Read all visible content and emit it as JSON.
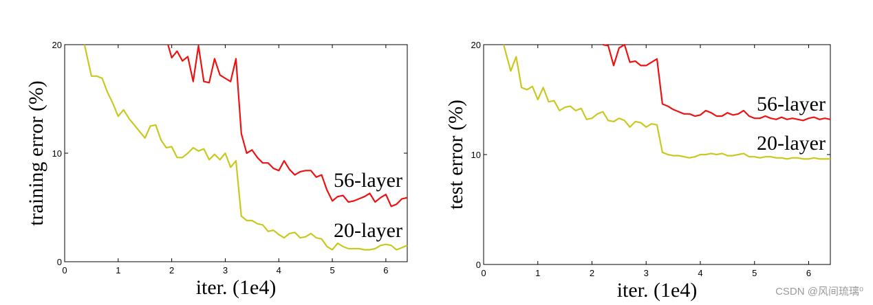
{
  "chart_data": [
    {
      "type": "line",
      "xlabel": "iter. (1e4)",
      "ylabel": "training error (%)",
      "xlim": [
        0,
        6.4
      ],
      "ylim": [
        0,
        20
      ],
      "xticks": [
        0,
        1,
        2,
        3,
        4,
        5,
        6
      ],
      "xtick_labels": [
        "0",
        "1",
        "2",
        "3",
        "4",
        "5",
        "6"
      ],
      "yticks": [
        0,
        10,
        20
      ],
      "ytick_labels": [
        "0",
        "10",
        "20"
      ],
      "grid": false,
      "series": [
        {
          "name": "56-layer",
          "color": "#ee1111",
          "x": [
            1.93,
            2.0,
            2.1,
            2.2,
            2.3,
            2.4,
            2.5,
            2.6,
            2.7,
            2.8,
            2.9,
            3.0,
            3.1,
            3.2,
            3.3,
            3.4,
            3.5,
            3.6,
            3.7,
            3.8,
            3.9,
            4.0,
            4.1,
            4.2,
            4.3,
            4.4,
            4.5,
            4.6,
            4.7,
            4.8,
            4.9,
            5.0,
            5.1,
            5.2,
            5.3,
            5.4,
            5.5,
            5.6,
            5.7,
            5.8,
            5.9,
            6.0,
            6.1,
            6.2,
            6.3,
            6.4
          ],
          "y": [
            20.0,
            18.8,
            19.4,
            18.5,
            18.9,
            16.6,
            19.9,
            16.6,
            16.5,
            18.7,
            17.2,
            16.9,
            16.6,
            18.7,
            11.8,
            10.0,
            10.3,
            9.6,
            9.1,
            9.1,
            8.6,
            8.4,
            9.3,
            8.5,
            8.0,
            8.3,
            8.4,
            8.4,
            7.8,
            8.0,
            6.6,
            5.6,
            6.0,
            6.1,
            5.5,
            5.6,
            5.8,
            6.0,
            6.3,
            5.5,
            5.9,
            6.2,
            5.1,
            5.3,
            5.8,
            5.9
          ]
        },
        {
          "name": "20-layer",
          "color": "#c8c81e",
          "x": [
            0.37,
            0.5,
            0.6,
            0.7,
            0.8,
            0.9,
            1.0,
            1.1,
            1.2,
            1.3,
            1.4,
            1.5,
            1.6,
            1.7,
            1.8,
            1.9,
            2.0,
            2.1,
            2.2,
            2.3,
            2.4,
            2.5,
            2.6,
            2.7,
            2.8,
            2.9,
            3.0,
            3.1,
            3.2,
            3.3,
            3.4,
            3.5,
            3.6,
            3.7,
            3.8,
            3.9,
            4.0,
            4.1,
            4.2,
            4.3,
            4.4,
            4.5,
            4.6,
            4.7,
            4.8,
            4.9,
            5.0,
            5.1,
            5.2,
            5.3,
            5.4,
            5.5,
            5.6,
            5.7,
            5.8,
            5.9,
            6.0,
            6.1,
            6.2,
            6.3,
            6.4
          ],
          "y": [
            20.0,
            17.1,
            17.1,
            16.9,
            15.6,
            14.6,
            13.4,
            14.0,
            13.2,
            12.6,
            12.0,
            11.4,
            12.5,
            12.6,
            11.2,
            10.5,
            10.6,
            9.6,
            9.6,
            10.0,
            10.5,
            10.2,
            10.4,
            9.4,
            9.9,
            9.4,
            10.0,
            8.7,
            9.3,
            4.2,
            3.8,
            3.8,
            3.5,
            3.4,
            2.8,
            2.9,
            2.5,
            2.2,
            2.6,
            2.7,
            2.2,
            2.3,
            2.6,
            2.2,
            2.1,
            1.4,
            1.1,
            1.7,
            1.4,
            1.2,
            1.2,
            1.2,
            1.1,
            1.1,
            1.2,
            1.5,
            1.6,
            1.5,
            1.1,
            1.3,
            1.5
          ]
        }
      ]
    },
    {
      "type": "line",
      "xlabel": "iter. (1e4)",
      "ylabel": "test error (%)",
      "xlim": [
        0,
        6.4
      ],
      "ylim": [
        0,
        20
      ],
      "xticks": [
        0,
        1,
        2,
        3,
        4,
        5,
        6
      ],
      "xtick_labels": [
        "0",
        "1",
        "2",
        "3",
        "4",
        "5",
        "6"
      ],
      "yticks": [
        0,
        10,
        20
      ],
      "ytick_labels": [
        "0",
        "10",
        "20"
      ],
      "grid": false,
      "series": [
        {
          "name": "56-layer",
          "color": "#ee1111",
          "x": [
            2.2,
            2.3,
            2.4,
            2.5,
            2.6,
            2.7,
            2.8,
            2.9,
            3.0,
            3.1,
            3.2,
            3.3,
            3.4,
            3.5,
            3.6,
            3.7,
            3.8,
            3.9,
            4.0,
            4.1,
            4.2,
            4.3,
            4.4,
            4.5,
            4.6,
            4.7,
            4.8,
            4.9,
            5.0,
            5.1,
            5.2,
            5.3,
            5.4,
            5.5,
            5.6,
            5.7,
            5.8,
            5.9,
            6.0,
            6.1,
            6.2,
            6.3,
            6.4
          ],
          "y": [
            20.0,
            19.9,
            18.1,
            19.7,
            20.0,
            18.4,
            18.5,
            18.1,
            18.1,
            18.4,
            18.7,
            14.6,
            14.4,
            14.1,
            13.9,
            13.7,
            13.7,
            13.5,
            13.6,
            14.0,
            13.8,
            13.5,
            13.5,
            13.8,
            13.6,
            13.7,
            14.0,
            13.5,
            13.3,
            13.3,
            13.5,
            13.3,
            13.2,
            13.4,
            13.2,
            13.3,
            13.2,
            13.1,
            13.3,
            13.4,
            13.2,
            13.3,
            13.2
          ]
        },
        {
          "name": "20-layer",
          "color": "#c8c81e",
          "x": [
            0.37,
            0.5,
            0.6,
            0.7,
            0.8,
            0.9,
            1.0,
            1.1,
            1.2,
            1.3,
            1.4,
            1.5,
            1.6,
            1.7,
            1.8,
            1.9,
            2.0,
            2.1,
            2.2,
            2.3,
            2.4,
            2.5,
            2.6,
            2.7,
            2.8,
            2.9,
            3.0,
            3.1,
            3.2,
            3.3,
            3.4,
            3.5,
            3.6,
            3.7,
            3.8,
            3.9,
            4.0,
            4.1,
            4.2,
            4.3,
            4.4,
            4.5,
            4.6,
            4.7,
            4.8,
            4.9,
            5.0,
            5.1,
            5.2,
            5.3,
            5.4,
            5.5,
            5.6,
            5.7,
            5.8,
            5.9,
            6.0,
            6.1,
            6.2,
            6.3,
            6.4
          ],
          "y": [
            20.0,
            17.6,
            18.9,
            16.1,
            15.9,
            16.2,
            15.0,
            16.1,
            14.8,
            14.9,
            14.0,
            14.3,
            14.4,
            14.0,
            14.2,
            13.2,
            13.3,
            13.7,
            13.9,
            13.1,
            13.0,
            13.3,
            13.1,
            12.5,
            13.0,
            12.9,
            12.5,
            12.8,
            12.7,
            10.2,
            10.0,
            9.9,
            9.9,
            9.8,
            9.7,
            9.8,
            10.0,
            10.0,
            10.1,
            10.0,
            10.1,
            9.9,
            9.9,
            10.0,
            10.1,
            9.8,
            9.8,
            9.7,
            9.8,
            9.8,
            9.7,
            9.7,
            9.6,
            9.7,
            9.7,
            9.6,
            9.6,
            9.7,
            9.6,
            9.6,
            9.6
          ]
        }
      ]
    }
  ],
  "watermark": "CSDN @风间琉璃⁰"
}
